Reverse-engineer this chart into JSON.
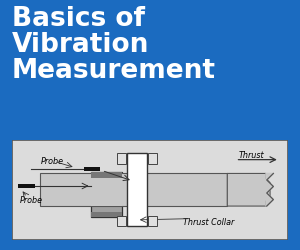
{
  "bg_color": "#1B6BC0",
  "title_lines": [
    "Basics of",
    "Vibration",
    "Measurement"
  ],
  "title_color": "#FFFFFF",
  "title_fontsize": 19,
  "title_fontweight": "bold",
  "diagram_facecolor": "#DCDCDC",
  "diagram_border": "#555555",
  "shaft_fill": "#C8C8C8",
  "shaft_edge": "#555555",
  "collar_fill": "#FFFFFF",
  "collar_edge": "#333333",
  "housing_fill": "#A0A0A0",
  "housing_edge": "#333333",
  "pad_fill": "#E0E0E0",
  "pad_edge": "#444444",
  "probe_fill": "#111111",
  "line_color": "#333333",
  "text_color": "#000000",
  "label_fontsize": 5.8
}
